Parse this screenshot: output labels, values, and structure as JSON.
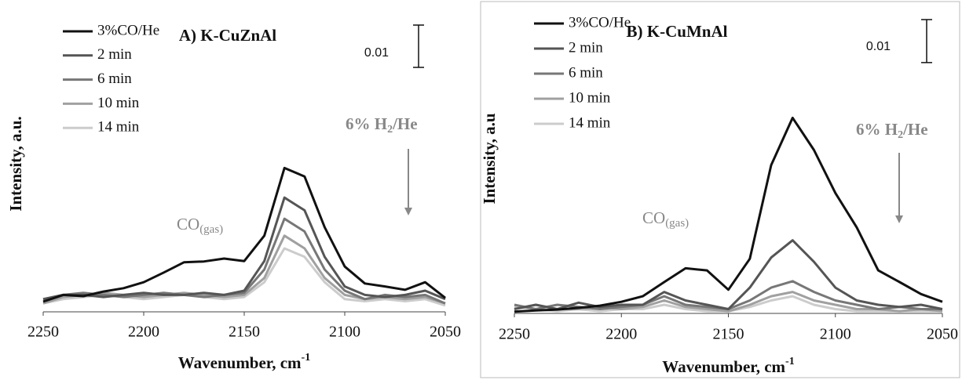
{
  "chart_data": [
    {
      "type": "line",
      "title": "A) K-CuZnAl",
      "ylabel": "Intensity, a.u.",
      "xlabel": "Wavenumber, cm",
      "xlabel_sup": "-1",
      "annotation_co": [
        "CO",
        "(gas)"
      ],
      "annotation_h2": [
        "6% H",
        "2",
        "/He"
      ],
      "scale_bar": 0.01,
      "x": [
        2250,
        2240,
        2230,
        2220,
        2210,
        2200,
        2190,
        2180,
        2170,
        2160,
        2150,
        2140,
        2130,
        2120,
        2110,
        2100,
        2090,
        2080,
        2070,
        2060,
        2050
      ],
      "xlim": [
        2250,
        2050
      ],
      "xticks": [
        2250,
        2200,
        2150,
        2100,
        2050
      ],
      "ylim": [
        0,
        0.07
      ],
      "series": [
        {
          "name": "3%CO/He",
          "color": "#111111",
          "values": [
            0.0024,
            0.004,
            0.0037,
            0.0048,
            0.0056,
            0.007,
            0.0093,
            0.0117,
            0.0119,
            0.0126,
            0.012,
            0.018,
            0.034,
            0.032,
            0.02,
            0.0107,
            0.0067,
            0.006,
            0.0052,
            0.007,
            0.0033
          ]
        },
        {
          "name": "2 min",
          "color": "#555555",
          "values": [
            0.003,
            0.004,
            0.004,
            0.0035,
            0.004,
            0.0045,
            0.004,
            0.004,
            0.0045,
            0.004,
            0.005,
            0.012,
            0.027,
            0.024,
            0.013,
            0.006,
            0.004,
            0.0035,
            0.004,
            0.005,
            0.003
          ]
        },
        {
          "name": "6 min",
          "color": "#777777",
          "values": [
            0.003,
            0.004,
            0.0045,
            0.004,
            0.0035,
            0.004,
            0.0045,
            0.004,
            0.0035,
            0.004,
            0.0045,
            0.01,
            0.022,
            0.019,
            0.01,
            0.005,
            0.003,
            0.004,
            0.0035,
            0.004,
            0.002
          ]
        },
        {
          "name": "10 min",
          "color": "#a0a0a0",
          "values": [
            0.002,
            0.0035,
            0.004,
            0.0045,
            0.004,
            0.0035,
            0.004,
            0.0045,
            0.004,
            0.0035,
            0.004,
            0.008,
            0.018,
            0.015,
            0.008,
            0.004,
            0.003,
            0.0035,
            0.003,
            0.0035,
            0.002
          ]
        },
        {
          "name": "14 min",
          "color": "#cccccc",
          "values": [
            0.002,
            0.003,
            0.0035,
            0.004,
            0.0035,
            0.003,
            0.0035,
            0.004,
            0.0035,
            0.003,
            0.0035,
            0.007,
            0.015,
            0.013,
            0.007,
            0.003,
            0.0025,
            0.003,
            0.0025,
            0.003,
            0.0015
          ]
        }
      ]
    },
    {
      "type": "line",
      "title": "B) K-CuMnAl",
      "ylabel": "Intensity, a.u",
      "xlabel": "Wavenumber, cm",
      "xlabel_sup": "-1",
      "annotation_co": [
        "CO",
        "(gas)"
      ],
      "annotation_h2": [
        "6% H",
        "2",
        "/He"
      ],
      "scale_bar": 0.01,
      "x": [
        2250,
        2240,
        2230,
        2220,
        2210,
        2200,
        2190,
        2180,
        2170,
        2160,
        2150,
        2140,
        2130,
        2120,
        2110,
        2100,
        2090,
        2080,
        2070,
        2060,
        2050
      ],
      "xlim": [
        2250,
        2050
      ],
      "xticks": [
        2250,
        2200,
        2150,
        2100,
        2050
      ],
      "ylim": [
        0,
        0.072
      ],
      "series": [
        {
          "name": "3%CO/He",
          "color": "#111111",
          "values": [
            0.0004,
            0.0007,
            0.0009,
            0.0013,
            0.0018,
            0.0027,
            0.004,
            0.0073,
            0.0105,
            0.01,
            0.0055,
            0.0127,
            0.0345,
            0.0455,
            0.038,
            0.028,
            0.02,
            0.01,
            0.0073,
            0.0045,
            0.0027
          ]
        },
        {
          "name": "2 min",
          "color": "#555555",
          "values": [
            0.001,
            0.002,
            0.001,
            0.0025,
            0.0015,
            0.002,
            0.002,
            0.005,
            0.003,
            0.002,
            0.001,
            0.006,
            0.013,
            0.017,
            0.012,
            0.006,
            0.003,
            0.002,
            0.0015,
            0.002,
            0.001
          ]
        },
        {
          "name": "6 min",
          "color": "#777777",
          "values": [
            0.002,
            0.001,
            0.002,
            0.0015,
            0.001,
            0.0015,
            0.002,
            0.004,
            0.002,
            0.0015,
            0.001,
            0.003,
            0.006,
            0.0075,
            0.005,
            0.003,
            0.002,
            0.001,
            0.0015,
            0.001,
            0.001
          ]
        },
        {
          "name": "10 min",
          "color": "#a0a0a0",
          "values": [
            0.001,
            0.002,
            0.001,
            0.001,
            0.0015,
            0.001,
            0.0015,
            0.003,
            0.0015,
            0.001,
            0.0005,
            0.002,
            0.004,
            0.005,
            0.003,
            0.002,
            0.001,
            0.001,
            0.0005,
            0.001,
            0.0005
          ]
        },
        {
          "name": "14 min",
          "color": "#cccccc",
          "values": [
            0.0015,
            0.001,
            0.0005,
            0.001,
            0.0005,
            0.001,
            0.001,
            0.002,
            0.001,
            0.0005,
            0.0005,
            0.0015,
            0.003,
            0.004,
            0.002,
            0.001,
            0.0005,
            0.0005,
            0.0005,
            0.0005,
            0.0005
          ]
        }
      ]
    }
  ]
}
